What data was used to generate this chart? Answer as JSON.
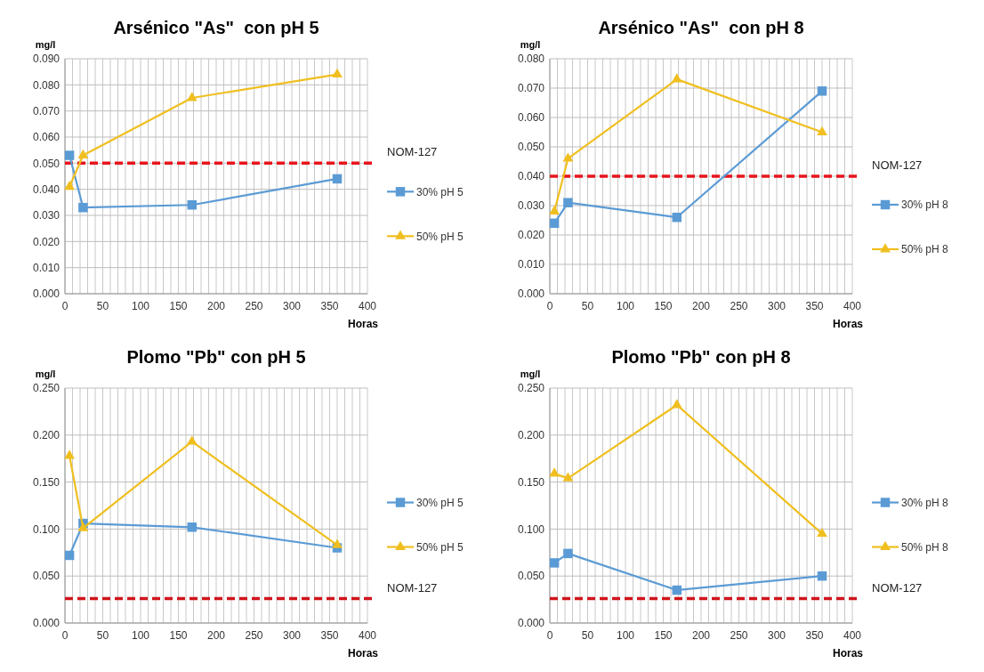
{
  "chart_data": [
    {
      "type": "line",
      "title": "Arsénico \"As\"  con pH 5",
      "xlabel": "Horas",
      "ylabel": "mg/l",
      "grid": true,
      "legend": "right",
      "line_style": "solid",
      "xlim": [
        0,
        400
      ],
      "ylim": [
        0,
        0.09
      ],
      "xticks": [
        0,
        {
          "value": 10,
          "label": null
        },
        {
          "value": 20,
          "label": null
        },
        {
          "value": 30,
          "label": null
        },
        {
          "value": 40,
          "label": null
        },
        50,
        {
          "value": 60,
          "label": null
        },
        {
          "value": 70,
          "label": null
        },
        {
          "value": 80,
          "label": null
        },
        {
          "value": 90,
          "label": null
        },
        100,
        {
          "value": 110,
          "label": null
        },
        {
          "value": 120,
          "label": null
        },
        {
          "value": 130,
          "label": null
        },
        {
          "value": 140,
          "label": null
        },
        150,
        {
          "value": 160,
          "label": null
        },
        {
          "value": 170,
          "label": null
        },
        {
          "value": 180,
          "label": null
        },
        {
          "value": 190,
          "label": null
        },
        200,
        {
          "value": 210,
          "label": null
        },
        {
          "value": 220,
          "label": null
        },
        {
          "value": 230,
          "label": null
        },
        {
          "value": 240,
          "label": null
        },
        250,
        {
          "value": 260,
          "label": null
        },
        {
          "value": 270,
          "label": null
        },
        {
          "value": 280,
          "label": null
        },
        {
          "value": 290,
          "label": null
        },
        300,
        {
          "value": 310,
          "label": null
        },
        {
          "value": 320,
          "label": null
        },
        {
          "value": 330,
          "label": null
        },
        {
          "value": 340,
          "label": null
        },
        350,
        {
          "value": 360,
          "label": null
        },
        {
          "value": 370,
          "label": null
        },
        {
          "value": 380,
          "label": null
        },
        {
          "value": 390,
          "label": null
        },
        400
      ],
      "yticks": [
        {
          "value": 0,
          "label": "0.000"
        },
        {
          "value": 0.01,
          "label": "0.010"
        },
        {
          "value": 0.02,
          "label": "0.020"
        },
        {
          "value": 0.03,
          "label": "0.030"
        },
        {
          "value": 0.04,
          "label": "0.040"
        },
        {
          "value": 0.05,
          "label": "0.050"
        },
        {
          "value": 0.06,
          "label": "0.060"
        },
        {
          "value": 0.07,
          "label": "0.070"
        },
        {
          "value": 0.08,
          "label": "0.080"
        },
        {
          "value": 0.09,
          "label": "0.090"
        }
      ],
      "x": [
        6,
        24,
        168,
        360
      ],
      "series": [
        {
          "name": "30% pH 5",
          "color": "#5b9bd5",
          "marker": "square",
          "values": [
            0.053,
            0.033,
            0.034,
            0.044
          ]
        },
        {
          "name": "50% pH 5",
          "color": "#f0bf1f",
          "marker": "triangle",
          "values": [
            0.041,
            0.053,
            0.075,
            0.084
          ]
        }
      ],
      "ref_lines": [
        {
          "axis": "y",
          "value": 0.05,
          "label": "NOM-127",
          "color": "#e8141c",
          "line_style": "dashed"
        }
      ]
    },
    {
      "type": "line",
      "title": "Arsénico \"As\"  con pH 8",
      "xlabel": "Horas",
      "ylabel": "mg/l",
      "grid": true,
      "legend": "right",
      "line_style": "solid",
      "xlim": [
        0,
        400
      ],
      "ylim": [
        0,
        0.08
      ],
      "xticks": [
        0,
        {
          "value": 10,
          "label": null
        },
        {
          "value": 20,
          "label": null
        },
        {
          "value": 30,
          "label": null
        },
        {
          "value": 40,
          "label": null
        },
        50,
        {
          "value": 60,
          "label": null
        },
        {
          "value": 70,
          "label": null
        },
        {
          "value": 80,
          "label": null
        },
        {
          "value": 90,
          "label": null
        },
        100,
        {
          "value": 110,
          "label": null
        },
        {
          "value": 120,
          "label": null
        },
        {
          "value": 130,
          "label": null
        },
        {
          "value": 140,
          "label": null
        },
        150,
        {
          "value": 160,
          "label": null
        },
        {
          "value": 170,
          "label": null
        },
        {
          "value": 180,
          "label": null
        },
        {
          "value": 190,
          "label": null
        },
        200,
        {
          "value": 210,
          "label": null
        },
        {
          "value": 220,
          "label": null
        },
        {
          "value": 230,
          "label": null
        },
        {
          "value": 240,
          "label": null
        },
        250,
        {
          "value": 260,
          "label": null
        },
        {
          "value": 270,
          "label": null
        },
        {
          "value": 280,
          "label": null
        },
        {
          "value": 290,
          "label": null
        },
        300,
        {
          "value": 310,
          "label": null
        },
        {
          "value": 320,
          "label": null
        },
        {
          "value": 330,
          "label": null
        },
        {
          "value": 340,
          "label": null
        },
        350,
        {
          "value": 360,
          "label": null
        },
        {
          "value": 370,
          "label": null
        },
        {
          "value": 380,
          "label": null
        },
        {
          "value": 390,
          "label": null
        },
        400
      ],
      "yticks": [
        {
          "value": 0,
          "label": "0.000"
        },
        {
          "value": 0.01,
          "label": "0.010"
        },
        {
          "value": 0.02,
          "label": "0.020"
        },
        {
          "value": 0.03,
          "label": "0.030"
        },
        {
          "value": 0.04,
          "label": "0.040"
        },
        {
          "value": 0.05,
          "label": "0.050"
        },
        {
          "value": 0.06,
          "label": "0.060"
        },
        {
          "value": 0.07,
          "label": "0.070"
        },
        {
          "value": 0.08,
          "label": "0.080"
        }
      ],
      "x": [
        6,
        24,
        168,
        360
      ],
      "series": [
        {
          "name": "30% pH 8",
          "color": "#5b9bd5",
          "marker": "square",
          "values": [
            0.024,
            0.031,
            0.026,
            0.069
          ]
        },
        {
          "name": "50% pH 8",
          "color": "#f0bf1f",
          "marker": "triangle",
          "values": [
            0.028,
            0.046,
            0.073,
            0.055
          ]
        }
      ],
      "ref_lines": [
        {
          "axis": "y",
          "value": 0.04,
          "label": "NOM-127",
          "color": "#e8141c",
          "line_style": "dashed"
        }
      ]
    },
    {
      "type": "line",
      "title": "Plomo \"Pb\" con pH 5",
      "xlabel": "Horas",
      "ylabel": "mg/l",
      "grid": true,
      "legend": "right",
      "line_style": "solid",
      "xlim": [
        0,
        400
      ],
      "ylim": [
        0,
        0.25
      ],
      "xticks": [
        0,
        {
          "value": 10,
          "label": null
        },
        {
          "value": 20,
          "label": null
        },
        {
          "value": 30,
          "label": null
        },
        {
          "value": 40,
          "label": null
        },
        50,
        {
          "value": 60,
          "label": null
        },
        {
          "value": 70,
          "label": null
        },
        {
          "value": 80,
          "label": null
        },
        {
          "value": 90,
          "label": null
        },
        100,
        {
          "value": 110,
          "label": null
        },
        {
          "value": 120,
          "label": null
        },
        {
          "value": 130,
          "label": null
        },
        {
          "value": 140,
          "label": null
        },
        150,
        {
          "value": 160,
          "label": null
        },
        {
          "value": 170,
          "label": null
        },
        {
          "value": 180,
          "label": null
        },
        {
          "value": 190,
          "label": null
        },
        200,
        {
          "value": 210,
          "label": null
        },
        {
          "value": 220,
          "label": null
        },
        {
          "value": 230,
          "label": null
        },
        {
          "value": 240,
          "label": null
        },
        250,
        {
          "value": 260,
          "label": null
        },
        {
          "value": 270,
          "label": null
        },
        {
          "value": 280,
          "label": null
        },
        {
          "value": 290,
          "label": null
        },
        300,
        {
          "value": 310,
          "label": null
        },
        {
          "value": 320,
          "label": null
        },
        {
          "value": 330,
          "label": null
        },
        {
          "value": 340,
          "label": null
        },
        350,
        {
          "value": 360,
          "label": null
        },
        {
          "value": 370,
          "label": null
        },
        {
          "value": 380,
          "label": null
        },
        {
          "value": 390,
          "label": null
        },
        400
      ],
      "yticks": [
        {
          "value": 0,
          "label": "0.000"
        },
        {
          "value": 0.05,
          "label": "0.050"
        },
        {
          "value": 0.1,
          "label": "0.100"
        },
        {
          "value": 0.15,
          "label": "0.150"
        },
        {
          "value": 0.2,
          "label": "0.200"
        },
        {
          "value": 0.25,
          "label": "0.250"
        }
      ],
      "x": [
        6,
        24,
        168,
        360
      ],
      "series": [
        {
          "name": "30% pH 5",
          "color": "#5b9bd5",
          "marker": "square",
          "values": [
            0.072,
            0.106,
            0.102,
            0.08
          ]
        },
        {
          "name": "50% pH 5",
          "color": "#f0bf1f",
          "marker": "triangle",
          "values": [
            0.178,
            0.101,
            0.193,
            0.083
          ]
        }
      ],
      "ref_lines": [
        {
          "axis": "y",
          "value": 0.026,
          "label": "NOM-127",
          "color": "#d0141c",
          "line_style": "dashed"
        }
      ]
    },
    {
      "type": "line",
      "title": "Plomo \"Pb\" con pH 8",
      "xlabel": "Horas",
      "ylabel": "mg/l",
      "grid": true,
      "legend": "right",
      "line_style": "solid",
      "xlim": [
        0,
        400
      ],
      "ylim": [
        0,
        0.25
      ],
      "xticks": [
        0,
        {
          "value": 10,
          "label": null
        },
        {
          "value": 20,
          "label": null
        },
        {
          "value": 30,
          "label": null
        },
        {
          "value": 40,
          "label": null
        },
        50,
        {
          "value": 60,
          "label": null
        },
        {
          "value": 70,
          "label": null
        },
        {
          "value": 80,
          "label": null
        },
        {
          "value": 90,
          "label": null
        },
        100,
        {
          "value": 110,
          "label": null
        },
        {
          "value": 120,
          "label": null
        },
        {
          "value": 130,
          "label": null
        },
        {
          "value": 140,
          "label": null
        },
        150,
        {
          "value": 160,
          "label": null
        },
        {
          "value": 170,
          "label": null
        },
        {
          "value": 180,
          "label": null
        },
        {
          "value": 190,
          "label": null
        },
        200,
        {
          "value": 210,
          "label": null
        },
        {
          "value": 220,
          "label": null
        },
        {
          "value": 230,
          "label": null
        },
        {
          "value": 240,
          "label": null
        },
        250,
        {
          "value": 260,
          "label": null
        },
        {
          "value": 270,
          "label": null
        },
        {
          "value": 280,
          "label": null
        },
        {
          "value": 290,
          "label": null
        },
        300,
        {
          "value": 310,
          "label": null
        },
        {
          "value": 320,
          "label": null
        },
        {
          "value": 330,
          "label": null
        },
        {
          "value": 340,
          "label": null
        },
        350,
        {
          "value": 360,
          "label": null
        },
        {
          "value": 370,
          "label": null
        },
        {
          "value": 380,
          "label": null
        },
        {
          "value": 390,
          "label": null
        },
        400
      ],
      "yticks": [
        {
          "value": 0,
          "label": "0.000"
        },
        {
          "value": 0.05,
          "label": "0.050"
        },
        {
          "value": 0.1,
          "label": "0.100"
        },
        {
          "value": 0.15,
          "label": "0.150"
        },
        {
          "value": 0.2,
          "label": "0.200"
        },
        {
          "value": 0.25,
          "label": "0.250"
        }
      ],
      "x": [
        6,
        24,
        168,
        360
      ],
      "series": [
        {
          "name": "30% pH 8",
          "color": "#5b9bd5",
          "marker": "square",
          "values": [
            0.064,
            0.074,
            0.035,
            0.05
          ]
        },
        {
          "name": "50% pH 8",
          "color": "#f0bf1f",
          "marker": "triangle",
          "values": [
            0.159,
            0.154,
            0.232,
            0.095
          ]
        }
      ],
      "ref_lines": [
        {
          "axis": "y",
          "value": 0.026,
          "label": "NOM-127",
          "color": "#d0141c",
          "line_style": "dashed"
        }
      ]
    }
  ]
}
